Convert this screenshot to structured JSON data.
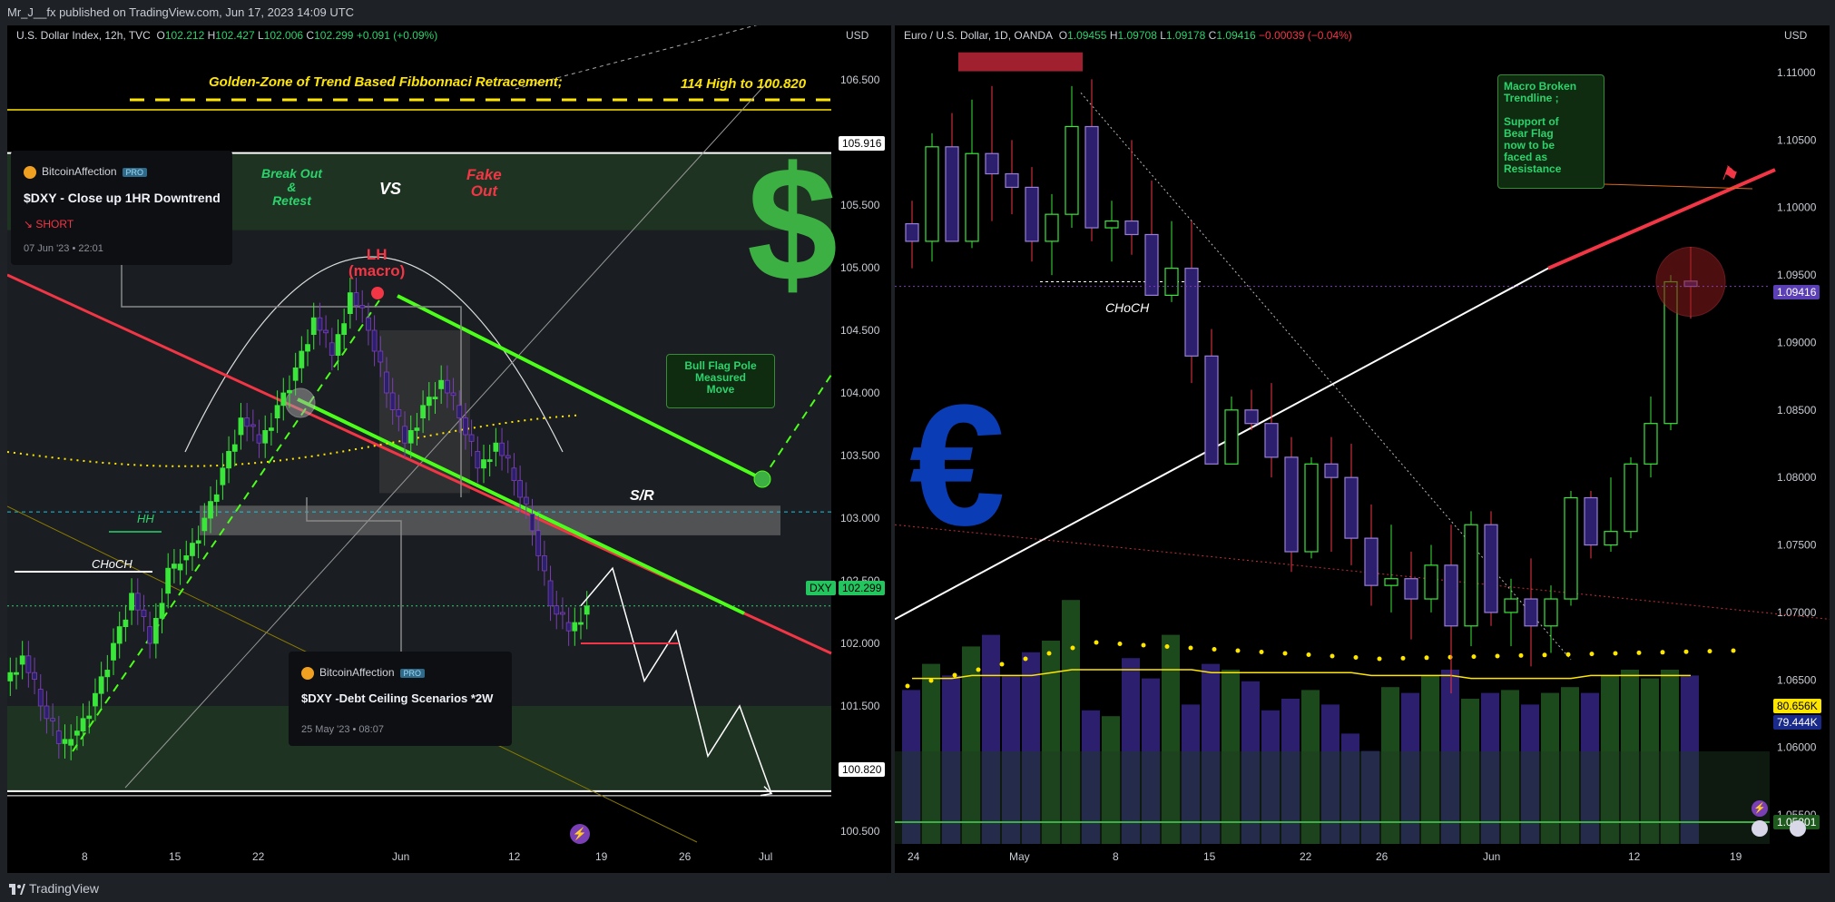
{
  "header": {
    "publisher": "Mr_J__fx published on TradingView.com, Jun 17, 2023 14:09 UTC"
  },
  "footer": {
    "brand": "TradingView"
  },
  "colors": {
    "up": "#39e639",
    "down": "#2b1f6e",
    "bear_line": "#f23645",
    "green_line": "#4cff1a",
    "fib": "#ffe600"
  },
  "left": {
    "symbol": "U.S. Dollar Index, 12h, TVC",
    "ohlc": {
      "o_label": "O",
      "o": "102.212",
      "h_label": "H",
      "h": "102.427",
      "l_label": "L",
      "l": "102.006",
      "c_label": "C",
      "c": "102.299",
      "chg": "+0.091 (+0.09%)"
    },
    "currency": "USD",
    "fib_label": "Golden-Zone of Trend Based Fibbonnaci Retracement;",
    "fib_range": "114 High to 100.820",
    "breakout": "Break Out\n&\nRetest",
    "vs": "VS",
    "fakeout": "Fake\nOut",
    "lh": "LH\n(macro)",
    "sr": "S/R",
    "hh": "HH",
    "choch": "CHoCH",
    "bull_flag": "Bull Flag Pole\nMeasured\nMove",
    "dollar_icon": "dollar-sign-icon",
    "price_tags": {
      "top": "105.916",
      "dxy_label": "DXY",
      "dxy": "102.299",
      "bottom": "100.820"
    },
    "card1": {
      "author": "BitcoinAffection",
      "pro": "PRO",
      "title": "$DXY - Close up 1HR Downtrend",
      "dir": "SHORT",
      "date": "07 Jun '23 • 22:01"
    },
    "card2": {
      "author": "BitcoinAffection",
      "pro": "PRO",
      "title": "$DXY -Debt Ceiling Scenarios *2W",
      "date": "25 May '23 • 08:07"
    },
    "chart_data": {
      "type": "line",
      "title": "U.S. Dollar Index, 12h, TVC",
      "y_ticks": [
        "106.500",
        "106.000",
        "105.500",
        "105.000",
        "104.500",
        "104.000",
        "103.500",
        "103.000",
        "102.500",
        "102.000",
        "101.500",
        "101.000",
        "100.500"
      ],
      "x_ticks": [
        "8",
        "15",
        "22",
        "Jun",
        "12",
        "19",
        "26",
        "Jul"
      ],
      "ylim": [
        100.3,
        106.9
      ],
      "levels": {
        "fib_top": 105.916,
        "sr": 103.05,
        "last": 102.299,
        "fib_bottom": 100.82
      },
      "close_path": [
        101.9,
        101.5,
        101.2,
        101.3,
        101.6,
        102.0,
        102.4,
        102.0,
        102.6,
        102.7,
        103.0,
        103.4,
        103.8,
        103.6,
        103.9,
        104.2,
        104.6,
        104.3,
        104.8,
        104.5,
        104.0,
        103.6,
        103.9,
        104.1,
        103.8,
        103.4,
        103.6,
        103.3,
        102.9,
        102.3,
        102.1,
        102.299
      ],
      "projection": [
        102.3,
        102.6,
        101.7,
        102.1,
        101.1,
        101.5,
        100.8
      ]
    }
  },
  "right": {
    "symbol": "Euro / U.S. Dollar, 1D, OANDA",
    "ohlc": {
      "o_label": "O",
      "o": "1.09455",
      "h_label": "H",
      "h": "1.09708",
      "l_label": "L",
      "l": "1.09178",
      "c_label": "C",
      "c": "1.09416",
      "chg": "−0.00039 (−0.04%)"
    },
    "currency": "USD",
    "euro_icon": "euro-sign-icon",
    "choch": "CHoCH",
    "note": "Macro Broken\nTrendline ;\n\nSupport of\nBear Flag\nnow to be\nfaced as\nResistance",
    "price_tags": {
      "last": "1.09416",
      "vol_a": "80.656K",
      "vol_b": "79.444K",
      "bottom": "1.05201"
    },
    "chart_data": {
      "type": "bar",
      "title": "Euro / U.S. Dollar, 1D, OANDA",
      "y_ticks": [
        "1.11000",
        "1.10500",
        "1.10000",
        "1.09500",
        "1.09000",
        "1.08500",
        "1.08000",
        "1.07500",
        "1.07000",
        "1.06500",
        "1.06000",
        "1.05500"
      ],
      "x_ticks": [
        "24",
        "May",
        "8",
        "15",
        "22",
        "26",
        "Jun",
        "12",
        "19"
      ],
      "ylim": [
        1.0495,
        1.1135
      ],
      "candles": [
        [
          1.0988,
          1.1005,
          1.0955,
          1.0975
        ],
        [
          1.0975,
          1.1055,
          1.096,
          1.1045
        ],
        [
          1.1045,
          1.107,
          1.0975,
          1.0975
        ],
        [
          1.0975,
          1.108,
          1.097,
          1.104
        ],
        [
          1.104,
          1.109,
          1.099,
          1.1025
        ],
        [
          1.1025,
          1.105,
          1.0995,
          1.1015
        ],
        [
          1.1015,
          1.103,
          1.096,
          1.0975
        ],
        [
          1.0975,
          1.101,
          1.095,
          1.0995
        ],
        [
          1.0995,
          1.109,
          1.0985,
          1.106
        ],
        [
          1.106,
          1.1095,
          1.0975,
          1.0985
        ],
        [
          1.0985,
          1.1005,
          1.096,
          1.099
        ],
        [
          1.099,
          1.105,
          1.0965,
          1.098
        ],
        [
          1.098,
          1.102,
          1.094,
          1.0935
        ],
        [
          1.0935,
          1.099,
          1.093,
          1.0955
        ],
        [
          1.0955,
          1.099,
          1.087,
          1.089
        ],
        [
          1.089,
          1.091,
          1.082,
          1.081
        ],
        [
          1.081,
          1.086,
          1.081,
          1.085
        ],
        [
          1.085,
          1.0865,
          1.0835,
          1.084
        ],
        [
          1.084,
          1.087,
          1.08,
          1.0815
        ],
        [
          1.0815,
          1.083,
          1.073,
          1.0745
        ],
        [
          1.0745,
          1.0815,
          1.074,
          1.081
        ],
        [
          1.081,
          1.083,
          1.0745,
          1.08
        ],
        [
          1.08,
          1.0825,
          1.0735,
          1.0755
        ],
        [
          1.0755,
          1.078,
          1.0705,
          1.072
        ],
        [
          1.072,
          1.0765,
          1.07,
          1.0725
        ],
        [
          1.0725,
          1.0745,
          1.068,
          1.071
        ],
        [
          1.071,
          1.075,
          1.07,
          1.0735
        ],
        [
          1.0735,
          1.0765,
          1.064,
          1.069
        ],
        [
          1.069,
          1.0775,
          1.0675,
          1.0765
        ],
        [
          1.0765,
          1.0775,
          1.069,
          1.07
        ],
        [
          1.07,
          1.0725,
          1.0675,
          1.071
        ],
        [
          1.071,
          1.074,
          1.066,
          1.069
        ],
        [
          1.069,
          1.072,
          1.067,
          1.071
        ],
        [
          1.071,
          1.079,
          1.0705,
          1.0785
        ],
        [
          1.0785,
          1.079,
          1.074,
          1.075
        ],
        [
          1.075,
          1.08,
          1.0745,
          1.076
        ],
        [
          1.076,
          1.0815,
          1.0755,
          1.081
        ],
        [
          1.081,
          1.086,
          1.08,
          1.084
        ],
        [
          1.084,
          1.095,
          1.0835,
          1.0945
        ],
        [
          1.09455,
          1.09708,
          1.09178,
          1.09416
        ]
      ],
      "volume": [
        53,
        62,
        58,
        68,
        72,
        58,
        66,
        70,
        84,
        46,
        44,
        64,
        57,
        72,
        48,
        62,
        60,
        56,
        46,
        50,
        53,
        48,
        38,
        32,
        54,
        52,
        58,
        60,
        50,
        52,
        53,
        48,
        52,
        54,
        52,
        58,
        60,
        57,
        60,
        58
      ],
      "volume_ma": [
        57,
        57,
        57,
        58,
        58,
        58,
        58,
        59,
        60,
        60,
        60,
        60,
        60,
        60,
        60,
        59,
        59,
        59,
        59,
        59,
        59,
        59,
        59,
        58,
        58,
        58,
        58,
        58,
        57,
        57,
        57,
        57,
        57,
        57,
        58,
        58,
        58,
        58,
        58,
        58
      ]
    }
  }
}
